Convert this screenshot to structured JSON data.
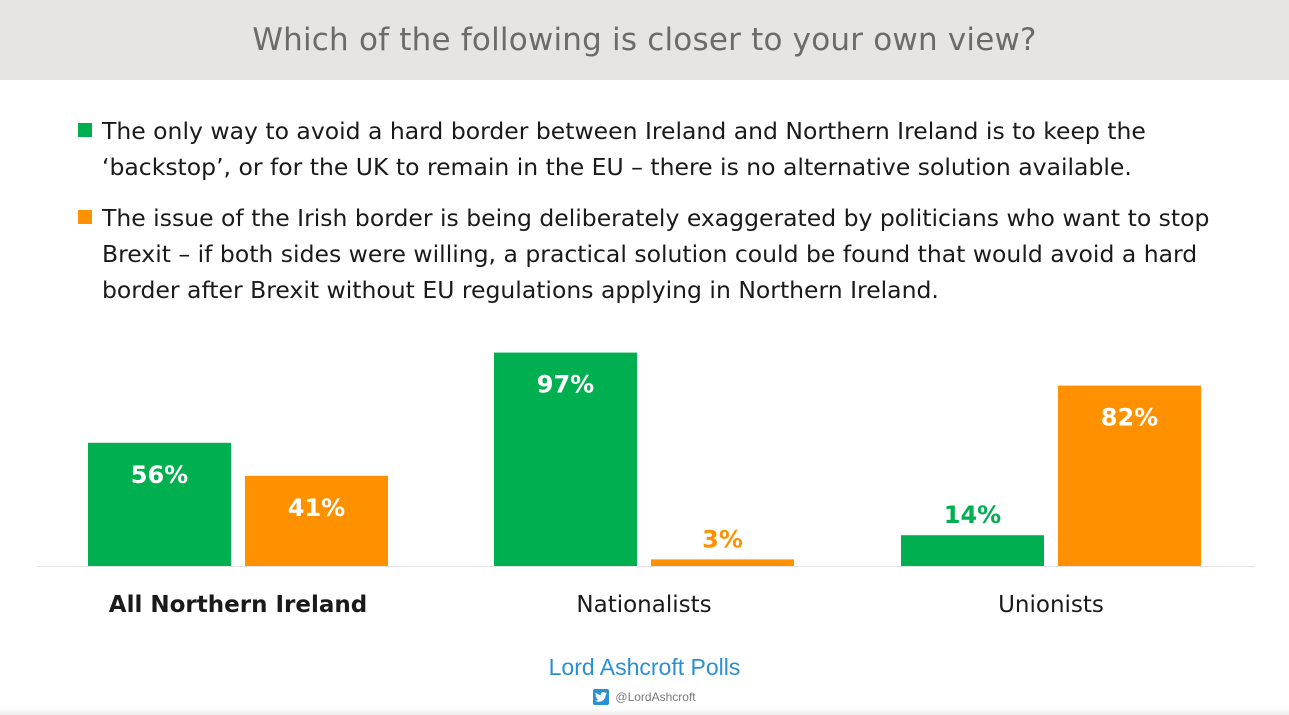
{
  "header": {
    "title": "Which of the following is closer to your own view?"
  },
  "legend": [
    {
      "label": "The only way to avoid a hard border between Ireland and Northern Ireland is to keep the ‘backstop’,  or for the UK to remain in the EU – there is no alternative solution available.",
      "color": "#00b050"
    },
    {
      "label": "The issue of the Irish border is being deliberately exaggerated by politicians who want to stop Brexit – if both sides were willing, a practical solution could be found that would avoid a hard border after Brexit without EU regulations applying in Northern Ireland.",
      "color": "#ff9000"
    }
  ],
  "chart_data": {
    "type": "bar",
    "categories": [
      "All Northern Ireland",
      "Nationalists",
      "Unionists"
    ],
    "series": [
      {
        "values": [
          56,
          97,
          14
        ],
        "labels": [
          "56%",
          "97%",
          "14%"
        ],
        "color": "#00b050"
      },
      {
        "values": [
          41,
          3,
          82
        ],
        "labels": [
          "41%",
          "3%",
          "82%"
        ],
        "color": "#ff9000"
      }
    ],
    "ylim": [
      0,
      100
    ],
    "grid": false,
    "legend_position": "top"
  },
  "footer": {
    "brand": "Lord Ashcroft Polls",
    "handle": "@LordAshcroft",
    "icon": "twitter-icon"
  }
}
